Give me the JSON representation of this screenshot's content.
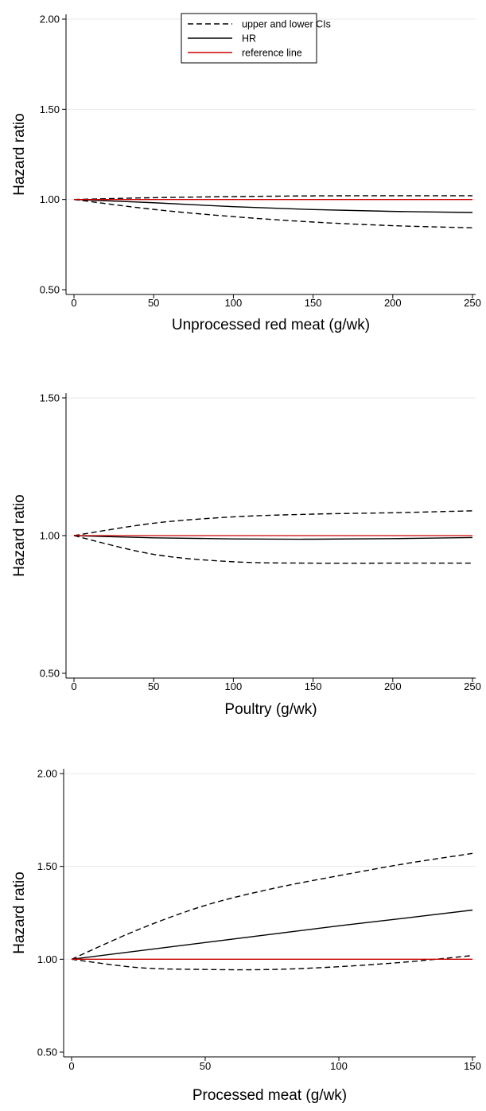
{
  "chart_data": [
    {
      "type": "line",
      "xlabel": "Unprocessed red meat (g/wk)",
      "ylabel": "Hazard ratio",
      "xlim": [
        0,
        250
      ],
      "ylim": [
        0.5,
        2.0
      ],
      "x_ticks": [
        "0",
        "50",
        "100",
        "150",
        "200",
        "250"
      ],
      "y_ticks": [
        "0.50",
        "1.00",
        "1.50",
        "2.00"
      ],
      "x": [
        0,
        50,
        100,
        150,
        200,
        250
      ],
      "grid": "horizontal",
      "legend": {
        "position": "top-center",
        "entries": [
          {
            "label": "upper and lower CIs",
            "style": "dashed",
            "color": "#000000"
          },
          {
            "label": "HR",
            "style": "solid",
            "color": "#000000"
          },
          {
            "label": "reference line",
            "style": "solid",
            "color": "#cc0000"
          }
        ]
      },
      "series": [
        {
          "role": "upper CI",
          "style": "dashed",
          "color": "#000000",
          "values": [
            1.0,
            1.01,
            1.016,
            1.02,
            1.021,
            1.021
          ]
        },
        {
          "role": "HR",
          "style": "solid",
          "color": "#000000",
          "values": [
            1.0,
            0.982,
            0.96,
            0.944,
            0.934,
            0.928
          ]
        },
        {
          "role": "lower CI",
          "style": "dashed",
          "color": "#000000",
          "values": [
            1.0,
            0.945,
            0.905,
            0.875,
            0.855,
            0.843
          ]
        },
        {
          "role": "reference",
          "style": "solid",
          "color": "#cc0000",
          "values": [
            1.0,
            1.0,
            1.0,
            1.0,
            1.0,
            1.0
          ]
        }
      ]
    },
    {
      "type": "line",
      "xlabel": "Poultry (g/wk)",
      "ylabel": "Hazard ratio",
      "xlim": [
        0,
        250
      ],
      "ylim": [
        0.5,
        1.5
      ],
      "x_ticks": [
        "0",
        "50",
        "100",
        "150",
        "200",
        "250"
      ],
      "y_ticks": [
        "0.50",
        "1.00",
        "1.50"
      ],
      "x": [
        0,
        50,
        100,
        150,
        200,
        250
      ],
      "grid": "horizontal",
      "series": [
        {
          "role": "upper CI",
          "style": "dashed",
          "color": "#000000",
          "values": [
            1.0,
            1.045,
            1.068,
            1.078,
            1.083,
            1.09
          ]
        },
        {
          "role": "HR",
          "style": "solid",
          "color": "#000000",
          "values": [
            1.0,
            0.992,
            0.988,
            0.987,
            0.989,
            0.993
          ]
        },
        {
          "role": "lower CI",
          "style": "dashed",
          "color": "#000000",
          "values": [
            1.0,
            0.932,
            0.905,
            0.9,
            0.9,
            0.9
          ]
        },
        {
          "role": "reference",
          "style": "solid",
          "color": "#cc0000",
          "values": [
            1.0,
            1.0,
            1.0,
            1.0,
            1.0,
            1.0
          ]
        }
      ]
    },
    {
      "type": "line",
      "xlabel": "Processed meat (g/wk)",
      "ylabel": "Hazard ratio",
      "xlim": [
        0,
        150
      ],
      "ylim": [
        0.5,
        2.0
      ],
      "x_ticks": [
        "0",
        "50",
        "100",
        "150"
      ],
      "y_ticks": [
        "0.50",
        "1.00",
        "1.50",
        "2.00"
      ],
      "x": [
        0,
        25,
        50,
        75,
        100,
        125,
        150
      ],
      "grid": "horizontal",
      "series": [
        {
          "role": "upper CI",
          "style": "dashed",
          "color": "#000000",
          "values": [
            1.0,
            1.16,
            1.29,
            1.38,
            1.45,
            1.515,
            1.57
          ]
        },
        {
          "role": "HR",
          "style": "solid",
          "color": "#000000",
          "values": [
            1.0,
            1.045,
            1.09,
            1.135,
            1.18,
            1.222,
            1.265
          ]
        },
        {
          "role": "lower CI",
          "style": "dashed",
          "color": "#000000",
          "values": [
            1.0,
            0.955,
            0.945,
            0.945,
            0.96,
            0.985,
            1.02
          ]
        },
        {
          "role": "reference",
          "style": "solid",
          "color": "#cc0000",
          "values": [
            1.0,
            1.0,
            1.0,
            1.0,
            1.0,
            1.0,
            1.0
          ]
        }
      ]
    }
  ]
}
